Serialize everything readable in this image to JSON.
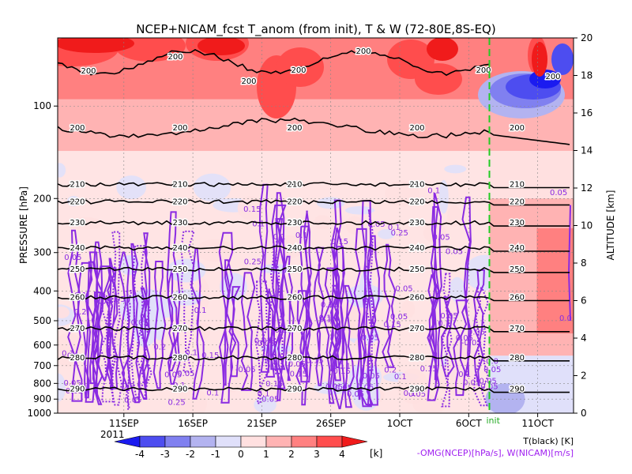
{
  "chart_data": {
    "type": "heatmap",
    "title": "NCEP+NICAM_fcst T_anom (from init), T & W  (72-80E,8S-EQ)",
    "ylabel_left": "PRESSURE [hPa]",
    "ylabel_right": "ALTITUDE [km]",
    "pressure_ticks": [
      "100",
      "200",
      "300",
      "400",
      "500",
      "600",
      "700",
      "800",
      "900",
      "1000"
    ],
    "pressure_values": [
      100,
      200,
      300,
      400,
      500,
      600,
      700,
      800,
      900,
      1000
    ],
    "pressure_range": [
      60,
      1000
    ],
    "altitude_ticks": [
      "0",
      "2",
      "4",
      "6",
      "8",
      "10",
      "12",
      "14",
      "16",
      "18",
      "20"
    ],
    "altitude_values": [
      0,
      2,
      4,
      6,
      8,
      10,
      12,
      14,
      16,
      18,
      20
    ],
    "time_ticks": [
      "11SEP",
      "16SEP",
      "21SEP",
      "26SEP",
      "1OCT",
      "6OCT",
      "11OCT"
    ],
    "time_tick_days": [
      11,
      16,
      21,
      26,
      31,
      36,
      41
    ],
    "time_range_days": [
      6.2,
      43.6
    ],
    "year_label": "2011",
    "init_label": "init",
    "init_day": 37.5,
    "colorbar": {
      "labels": [
        "-4",
        "-3",
        "-2",
        "-1",
        "0",
        "1",
        "2",
        "3",
        "4"
      ],
      "unit": "[k]",
      "colors": [
        "#1b1bf0",
        "#4d4df0",
        "#8080f0",
        "#b3b3f0",
        "#e0e0fa",
        "#ffe0e0",
        "#ffb3b3",
        "#ff8080",
        "#ff4d4d",
        "#f01b1b"
      ]
    },
    "temperature_contours": [
      {
        "label": "200",
        "p": 118
      },
      {
        "label": "210",
        "p": 180
      },
      {
        "label": "220",
        "p": 205
      },
      {
        "label": "230",
        "p": 240
      },
      {
        "label": "240",
        "p": 290
      },
      {
        "label": "250",
        "p": 340
      },
      {
        "label": "260",
        "p": 420
      },
      {
        "label": "270",
        "p": 530
      },
      {
        "label": "280",
        "p": 660
      },
      {
        "label": "290",
        "p": 835
      }
    ],
    "w_labels": [
      "0.05",
      "0.1",
      "0.15",
      "0.2",
      "0.25",
      "-0.05",
      "0.0",
      "-0.0"
    ],
    "footer_t": "T(black) [K]",
    "footer_w": "-OMG(NCEP)[hPa/s], W(NICAM)[m/s]"
  }
}
